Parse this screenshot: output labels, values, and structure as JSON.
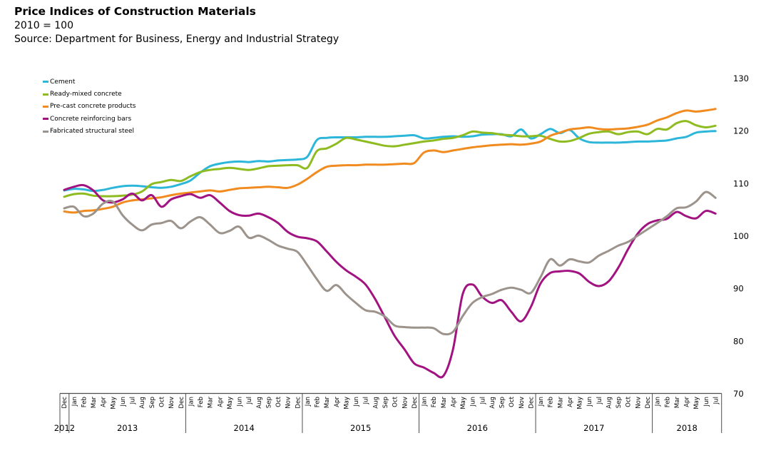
{
  "header": {
    "title": "Price Indices of Construction Materials",
    "subtitle": "2010 = 100",
    "source": "Source: Department for Business, Energy and Industrial Strategy"
  },
  "chart_data": {
    "type": "line",
    "title": "Price Indices of Construction Materials",
    "subtitle": "2010 = 100",
    "grid": false,
    "legend_position": "top-left",
    "x_axis": {
      "first_tick": "Dec",
      "month_names": [
        "Jan",
        "Feb",
        "Mar",
        "Apr",
        "May",
        "Jun",
        "Jul",
        "Aug",
        "Sep",
        "Oct",
        "Nov",
        "Dec"
      ],
      "years": [
        "2012",
        "2013",
        "2014",
        "2015",
        "2016",
        "2017",
        "2018"
      ],
      "months_in_last_year": 7,
      "range_text": "Dec 2012 - Jul 2018"
    },
    "y_axis": {
      "min": 70,
      "max": 130,
      "step": 10,
      "position": "right",
      "tick_labels": [
        "130",
        "120",
        "110",
        "100",
        "90",
        "80",
        "70"
      ]
    },
    "axis_color": "#4d4d4d",
    "series": [
      {
        "name": "Cement",
        "color": "#2cb6d9",
        "values": [
          108.7,
          109.0,
          108.9,
          108.6,
          108.8,
          109.2,
          109.5,
          109.6,
          109.5,
          109.3,
          109.2,
          109.4,
          109.9,
          110.6,
          112.1,
          113.3,
          113.8,
          114.1,
          114.2,
          114.1,
          114.3,
          114.2,
          114.4,
          114.5,
          114.6,
          115.1,
          118.3,
          118.7,
          118.8,
          118.8,
          118.8,
          118.9,
          118.9,
          118.9,
          119.0,
          119.1,
          119.2,
          118.6,
          118.7,
          118.9,
          119.0,
          118.9,
          119.0,
          119.3,
          119.4,
          119.4,
          119.0,
          120.3,
          118.6,
          119.4,
          120.4,
          119.6,
          120.2,
          118.6,
          117.9,
          117.8,
          117.8,
          117.8,
          117.9,
          118.0,
          118.0,
          118.1,
          118.2,
          118.6,
          118.9,
          119.7,
          119.9,
          120.0
        ]
      },
      {
        "name": "Ready-mixed concrete",
        "color": "#8ebc20",
        "values": [
          107.5,
          108.0,
          108.1,
          107.7,
          107.6,
          107.6,
          107.7,
          107.9,
          108.5,
          109.9,
          110.3,
          110.7,
          110.5,
          111.4,
          112.2,
          112.6,
          112.8,
          113.0,
          112.8,
          112.6,
          112.9,
          113.3,
          113.4,
          113.5,
          113.5,
          113.0,
          116.2,
          116.7,
          117.6,
          118.7,
          118.4,
          118.0,
          117.6,
          117.2,
          117.1,
          117.4,
          117.7,
          118.0,
          118.2,
          118.5,
          118.7,
          119.2,
          119.9,
          119.7,
          119.6,
          119.3,
          119.2,
          119.0,
          119.0,
          119.1,
          118.5,
          118.0,
          118.1,
          118.7,
          119.5,
          119.8,
          119.9,
          119.4,
          119.8,
          119.9,
          119.4,
          120.4,
          120.3,
          121.5,
          121.9,
          121.1,
          120.7,
          121.0
        ]
      },
      {
        "name": "Pre-cast concrete products",
        "color": "#f18b1f",
        "values": [
          104.7,
          104.5,
          104.8,
          104.9,
          105.2,
          105.6,
          106.4,
          106.8,
          107.0,
          107.2,
          107.4,
          107.8,
          108.1,
          108.3,
          108.5,
          108.7,
          108.5,
          108.8,
          109.1,
          109.2,
          109.3,
          109.4,
          109.3,
          109.2,
          109.8,
          110.9,
          112.2,
          113.2,
          113.4,
          113.5,
          113.5,
          113.6,
          113.6,
          113.6,
          113.7,
          113.8,
          113.9,
          115.9,
          116.3,
          116.0,
          116.3,
          116.6,
          116.9,
          117.1,
          117.3,
          117.4,
          117.5,
          117.4,
          117.6,
          118.0,
          119.1,
          119.7,
          120.3,
          120.5,
          120.7,
          120.4,
          120.3,
          120.4,
          120.5,
          120.8,
          121.2,
          122.0,
          122.6,
          123.4,
          123.9,
          123.7,
          123.9,
          124.2
        ]
      },
      {
        "name": "Concrete reinforcing bars",
        "color": "#a01380",
        "values": [
          108.8,
          109.4,
          109.7,
          108.7,
          106.8,
          106.4,
          107.0,
          108.1,
          106.8,
          107.8,
          105.6,
          107.0,
          107.6,
          108.0,
          107.3,
          107.8,
          106.4,
          104.8,
          104.0,
          103.9,
          104.3,
          103.6,
          102.5,
          100.8,
          99.9,
          99.6,
          99.0,
          97.1,
          95.1,
          93.5,
          92.3,
          90.8,
          88.0,
          84.5,
          81.0,
          78.5,
          75.8,
          75.0,
          74.0,
          73.4,
          78.5,
          89.0,
          90.8,
          88.5,
          87.3,
          87.8,
          85.6,
          83.8,
          86.5,
          91.0,
          93.0,
          93.3,
          93.4,
          92.9,
          91.3,
          90.5,
          91.4,
          94.0,
          97.5,
          100.5,
          102.3,
          103.0,
          103.3,
          104.6,
          103.8,
          103.4,
          104.8,
          104.3
        ]
      },
      {
        "name": "Fabricated structural steel",
        "color": "#9c948c",
        "values": [
          105.3,
          105.6,
          103.8,
          104.3,
          106.2,
          106.6,
          104.0,
          102.2,
          101.1,
          102.2,
          102.5,
          102.9,
          101.5,
          102.8,
          103.6,
          102.2,
          100.6,
          101.0,
          101.8,
          99.7,
          100.1,
          99.3,
          98.2,
          97.6,
          97.0,
          94.5,
          91.8,
          89.6,
          90.7,
          88.9,
          87.3,
          85.9,
          85.6,
          84.7,
          83.0,
          82.7,
          82.6,
          82.6,
          82.5,
          81.4,
          81.8,
          84.8,
          87.3,
          88.4,
          89.0,
          89.8,
          90.2,
          89.8,
          89.2,
          92.2,
          95.6,
          94.4,
          95.6,
          95.2,
          95.0,
          96.3,
          97.2,
          98.2,
          98.9,
          100.1,
          101.3,
          102.5,
          103.8,
          105.3,
          105.5,
          106.6,
          108.4,
          107.3
        ]
      }
    ]
  }
}
